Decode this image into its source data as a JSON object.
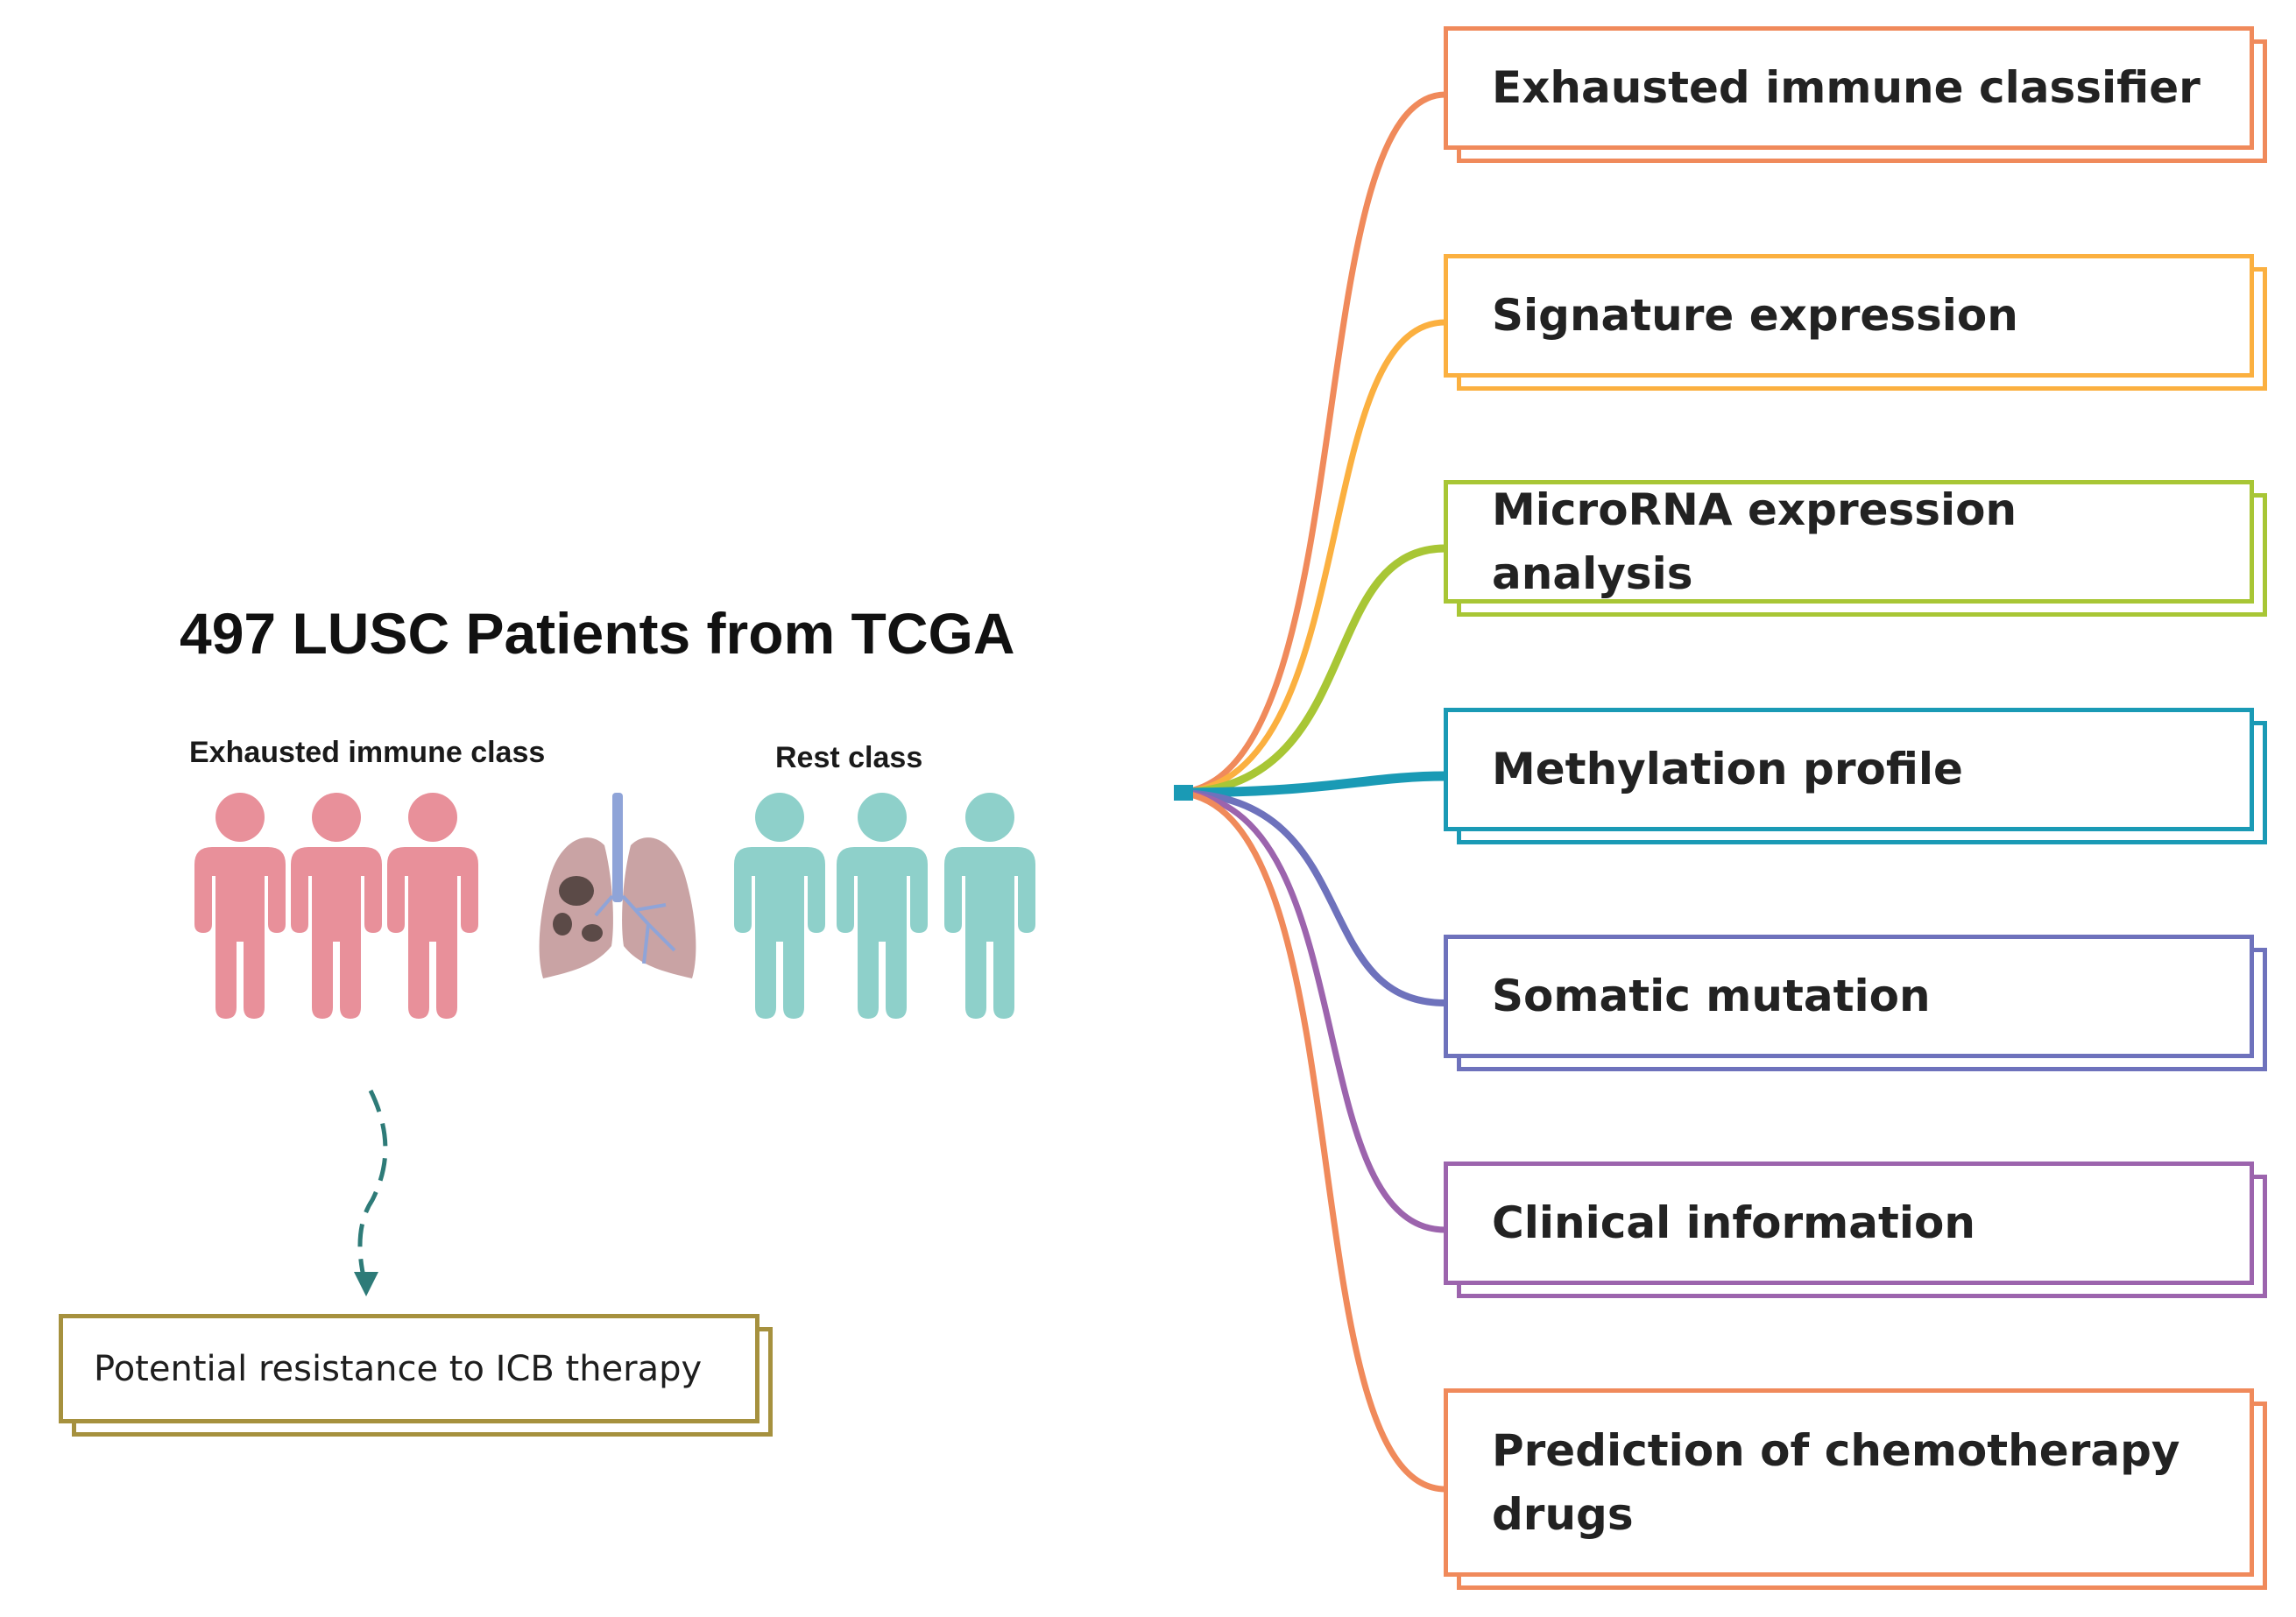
{
  "title": "497 LUSC Patients from TCGA",
  "groups": {
    "exhausted_label": "Exhausted immune class",
    "rest_label": "Rest class",
    "exhausted_color": "#E8909A",
    "rest_color": "#8ED0CA"
  },
  "lung": {
    "icon": "lung-icon",
    "tissue_color": "#C9A3A4",
    "airway_color": "#8FA4D8",
    "tumor_color": "#5B4A47"
  },
  "outcome": {
    "label": "Potential resistance to ICB therapy",
    "color": "#A6913E",
    "arrow_color": "#2E7B78"
  },
  "analyses": [
    {
      "label": "Exhausted immune classifier",
      "color": "#F08A5B"
    },
    {
      "label": "Signature expression",
      "color": "#FBB040"
    },
    {
      "label": "MicroRNA expression analysis",
      "color": "#A8C635"
    },
    {
      "label": "Methylation profile",
      "color": "#1A9AB5"
    },
    {
      "label": "Somatic mutation",
      "color": "#6E72BC"
    },
    {
      "label": "Clinical information",
      "color": "#9C64AD"
    },
    {
      "label": "Prediction of chemotherapy drugs",
      "color": "#F08A5B"
    }
  ]
}
